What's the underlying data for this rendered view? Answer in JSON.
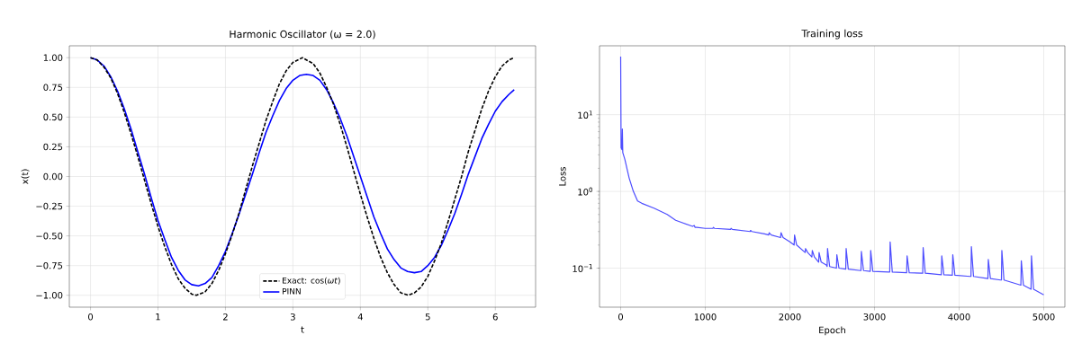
{
  "chart_data": [
    {
      "type": "line",
      "title": "Harmonic Oscillator (ω = 2.0)",
      "xlabel": "t",
      "ylabel": "x(t)",
      "xlim": [
        -0.314,
        6.597
      ],
      "ylim": [
        -1.1,
        1.1
      ],
      "xticks": [
        0,
        1,
        2,
        3,
        4,
        5,
        6
      ],
      "yticks": [
        {
          "value": -1,
          "label": "−1.00"
        },
        {
          "value": -0.75,
          "label": "−0.75"
        },
        {
          "value": -0.5,
          "label": "−0.50"
        },
        {
          "value": -0.25,
          "label": "−0.25"
        },
        {
          "value": 0,
          "label": "0.00"
        },
        {
          "value": 0.25,
          "label": "0.25"
        },
        {
          "value": 0.5,
          "label": "0.50"
        },
        {
          "value": 0.75,
          "label": "0.75"
        },
        {
          "value": 1,
          "label": "1.00"
        }
      ],
      "grid": true,
      "legend": "bottom",
      "series": [
        {
          "name": "Exact: cos(*ωt*)",
          "color": "#000000",
          "line_style": "dashed",
          "x": [
            0,
            0.1,
            0.2,
            0.3,
            0.4,
            0.5,
            0.6,
            0.7,
            0.8,
            0.9,
            1.0,
            1.1,
            1.2,
            1.3,
            1.4,
            1.5,
            1.57,
            1.7,
            1.8,
            1.9,
            2.0,
            2.1,
            2.2,
            2.3,
            2.4,
            2.5,
            2.6,
            2.7,
            2.8,
            2.9,
            3.0,
            3.14,
            3.3,
            3.4,
            3.5,
            3.6,
            3.7,
            3.8,
            3.9,
            4.0,
            4.1,
            4.2,
            4.3,
            4.4,
            4.5,
            4.6,
            4.71,
            4.8,
            4.9,
            5.0,
            5.1,
            5.2,
            5.3,
            5.4,
            5.5,
            5.6,
            5.7,
            5.8,
            5.9,
            6.0,
            6.1,
            6.2,
            6.28
          ],
          "values": [
            1.0,
            0.98,
            0.92,
            0.83,
            0.7,
            0.54,
            0.36,
            0.17,
            -0.03,
            -0.23,
            -0.42,
            -0.59,
            -0.74,
            -0.86,
            -0.94,
            -0.99,
            -1.0,
            -0.97,
            -0.9,
            -0.79,
            -0.65,
            -0.49,
            -0.31,
            -0.11,
            0.09,
            0.28,
            0.47,
            0.63,
            0.78,
            0.89,
            0.96,
            1.0,
            0.95,
            0.87,
            0.75,
            0.61,
            0.44,
            0.25,
            0.05,
            -0.15,
            -0.34,
            -0.52,
            -0.68,
            -0.81,
            -0.91,
            -0.98,
            -1.0,
            -0.98,
            -0.93,
            -0.84,
            -0.71,
            -0.56,
            -0.38,
            -0.19,
            0.0,
            0.21,
            0.39,
            0.57,
            0.72,
            0.84,
            0.93,
            0.98,
            1.0
          ]
        },
        {
          "name": "PINN",
          "color": "#0000ff",
          "line_style": "solid",
          "x": [
            0,
            0.1,
            0.2,
            0.3,
            0.4,
            0.5,
            0.6,
            0.7,
            0.8,
            0.9,
            1.0,
            1.1,
            1.2,
            1.3,
            1.4,
            1.5,
            1.6,
            1.7,
            1.8,
            1.9,
            2.0,
            2.1,
            2.2,
            2.3,
            2.4,
            2.5,
            2.6,
            2.7,
            2.8,
            2.9,
            3.0,
            3.1,
            3.2,
            3.3,
            3.4,
            3.5,
            3.6,
            3.7,
            3.8,
            3.9,
            4.0,
            4.1,
            4.2,
            4.3,
            4.4,
            4.5,
            4.6,
            4.7,
            4.8,
            4.9,
            5.0,
            5.1,
            5.2,
            5.3,
            5.4,
            5.5,
            5.6,
            5.7,
            5.8,
            5.9,
            6.0,
            6.1,
            6.2,
            6.28
          ],
          "values": [
            1.0,
            0.98,
            0.93,
            0.84,
            0.72,
            0.57,
            0.4,
            0.21,
            0.02,
            -0.18,
            -0.37,
            -0.53,
            -0.68,
            -0.79,
            -0.87,
            -0.91,
            -0.92,
            -0.9,
            -0.85,
            -0.75,
            -0.63,
            -0.48,
            -0.32,
            -0.15,
            0.02,
            0.2,
            0.37,
            0.51,
            0.64,
            0.74,
            0.81,
            0.85,
            0.86,
            0.85,
            0.81,
            0.73,
            0.62,
            0.49,
            0.34,
            0.17,
            0.0,
            -0.17,
            -0.34,
            -0.48,
            -0.61,
            -0.7,
            -0.77,
            -0.8,
            -0.81,
            -0.8,
            -0.75,
            -0.68,
            -0.58,
            -0.45,
            -0.31,
            -0.15,
            0.02,
            0.17,
            0.32,
            0.44,
            0.55,
            0.63,
            0.69,
            0.73
          ]
        }
      ]
    },
    {
      "type": "line",
      "title": "Training loss",
      "xlabel": "Epoch",
      "ylabel": "Loss",
      "log": "y",
      "xlim": [
        -250,
        5250
      ],
      "ylim": [
        0.031,
        79
      ],
      "xticks": [
        0,
        1000,
        2000,
        3000,
        4000,
        5000
      ],
      "yticks": [
        {
          "value": 0.1,
          "label": "10$^{−1}$"
        },
        {
          "value": 1,
          "label": "10$^{0}$"
        },
        {
          "value": 10,
          "label": "10$^{1}$"
        }
      ],
      "grid": true,
      "series": [
        {
          "color": "#4d4dff",
          "x": [
            0,
            5,
            15,
            20,
            25,
            50,
            100,
            150,
            200,
            250,
            400,
            550,
            650,
            850,
            870,
            880,
            900,
            1000,
            1090,
            1095,
            1110,
            1300,
            1305,
            1320,
            1530,
            1535,
            1550,
            1700,
            1750,
            1755,
            1780,
            1890,
            1895,
            1920,
            2000,
            2050,
            2055,
            2080,
            2180,
            2185,
            2210,
            2260,
            2265,
            2290,
            2340,
            2345,
            2370,
            2430,
            2440,
            2445,
            2470,
            2550,
            2555,
            2580,
            2660,
            2665,
            2690,
            2840,
            2845,
            2870,
            2950,
            2955,
            2980,
            3170,
            3180,
            3185,
            3210,
            3380,
            3385,
            3410,
            3560,
            3570,
            3575,
            3600,
            3790,
            3795,
            3820,
            3920,
            3925,
            3950,
            4130,
            4140,
            4145,
            4170,
            4340,
            4345,
            4370,
            4490,
            4500,
            4505,
            4530,
            4730,
            4735,
            4760,
            4850,
            4855,
            4880,
            5000
          ],
          "values": [
            57,
            3.7,
            3.5,
            6.5,
            3.2,
            2.6,
            1.5,
            1.0,
            0.75,
            0.7,
            0.6,
            0.5,
            0.42,
            0.35,
            0.36,
            0.34,
            0.34,
            0.33,
            0.33,
            0.34,
            0.33,
            0.32,
            0.33,
            0.32,
            0.3,
            0.31,
            0.3,
            0.28,
            0.27,
            0.29,
            0.27,
            0.25,
            0.29,
            0.25,
            0.22,
            0.2,
            0.27,
            0.2,
            0.16,
            0.18,
            0.16,
            0.14,
            0.17,
            0.14,
            0.12,
            0.16,
            0.12,
            0.11,
            0.105,
            0.18,
            0.105,
            0.1,
            0.15,
            0.1,
            0.097,
            0.18,
            0.097,
            0.093,
            0.165,
            0.093,
            0.091,
            0.17,
            0.091,
            0.089,
            0.089,
            0.22,
            0.089,
            0.087,
            0.145,
            0.087,
            0.086,
            0.086,
            0.185,
            0.086,
            0.082,
            0.145,
            0.082,
            0.081,
            0.15,
            0.081,
            0.078,
            0.078,
            0.19,
            0.078,
            0.073,
            0.13,
            0.073,
            0.07,
            0.07,
            0.17,
            0.07,
            0.06,
            0.125,
            0.06,
            0.053,
            0.145,
            0.053,
            0.045
          ]
        }
      ]
    }
  ]
}
